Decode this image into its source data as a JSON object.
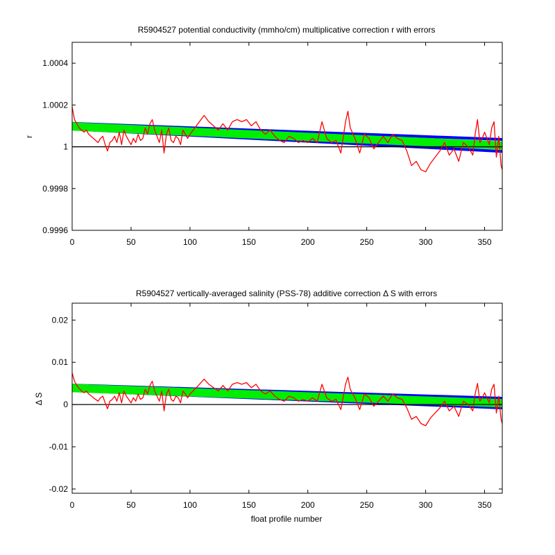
{
  "chart_data": [
    {
      "type": "line",
      "title": "R5904527 potential conductivity (mmho/cm) multiplicative correction r with errors",
      "xlabel": "",
      "ylabel": "r",
      "xlim": [
        0,
        365
      ],
      "ylim": [
        0.9996,
        1.0005
      ],
      "xticks": [
        0,
        50,
        100,
        150,
        200,
        250,
        300,
        350
      ],
      "xtick_labels": [
        "0",
        "50",
        "100",
        "150",
        "200",
        "250",
        "300",
        "350"
      ],
      "yticks": [
        0.9996,
        0.9998,
        1.0,
        1.0002,
        1.0004
      ],
      "ytick_labels": [
        "0.9996",
        "0.9998",
        "1",
        "1.0002",
        "1.0004"
      ],
      "reference_line": 1.0,
      "colors": {
        "raw": "#ff0000",
        "fit": "#00ee00",
        "error": "#0000ff",
        "reference": "#000000"
      },
      "series": [
        {
          "kind": "error_upper",
          "x": [
            0,
            365
          ],
          "y": [
            1.000112,
            1.000035
          ]
        },
        {
          "kind": "error_lower",
          "x": [
            0,
            365
          ],
          "y": [
            1.000085,
            0.999978
          ]
        },
        {
          "kind": "fit",
          "x": [
            0,
            365
          ],
          "y": [
            1.000097,
            1.000006
          ]
        },
        {
          "kind": "raw",
          "x": [
            0,
            2,
            4,
            6,
            8,
            10,
            12,
            14,
            16,
            18,
            20,
            22,
            24,
            26,
            28,
            30,
            32,
            34,
            36,
            38,
            40,
            42,
            44,
            46,
            48,
            50,
            52,
            54,
            56,
            58,
            60,
            62,
            64,
            66,
            68,
            70,
            72,
            74,
            76,
            78,
            80,
            82,
            84,
            86,
            88,
            90,
            92,
            94,
            96,
            98,
            100,
            104,
            108,
            112,
            116,
            120,
            124,
            128,
            132,
            136,
            140,
            144,
            148,
            152,
            156,
            160,
            164,
            168,
            172,
            176,
            180,
            184,
            188,
            192,
            196,
            200,
            204,
            208,
            212,
            216,
            220,
            224,
            228,
            232,
            234,
            236,
            240,
            244,
            248,
            252,
            256,
            260,
            264,
            268,
            272,
            276,
            280,
            284,
            288,
            292,
            296,
            300,
            304,
            308,
            312,
            316,
            320,
            324,
            328,
            332,
            336,
            340,
            342,
            344,
            346,
            348,
            350,
            352,
            354,
            356,
            358,
            360,
            362,
            364,
            365
          ],
          "y": [
            1.00019,
            1.00013,
            1.00011,
            1.00009,
            1.00008,
            1.00007,
            1.00008,
            1.00006,
            1.00005,
            1.00004,
            1.00003,
            1.00002,
            1.00004,
            1.00005,
            1.00001,
            0.99998,
            1.00002,
            1.00003,
            1.00005,
            1.00002,
            1.00007,
            1.00001,
            1.00008,
            1.00005,
            1.00003,
            1.00001,
            1.00004,
            1.00002,
            1.00006,
            1.00003,
            1.00004,
            1.00009,
            1.00006,
            1.00011,
            1.00013,
            1.00008,
            1.00005,
            1.00002,
            1.00008,
            0.99997,
            1.00006,
            1.00009,
            1.00003,
            1.00002,
            1.00005,
            1.00004,
            1.00001,
            1.00008,
            1.00006,
            1.00004,
            1.00006,
            1.00009,
            1.00012,
            1.00015,
            1.00012,
            1.0001,
            1.00008,
            1.00011,
            1.00008,
            1.00012,
            1.00013,
            1.00012,
            1.00013,
            1.0001,
            1.00012,
            1.00008,
            1.00006,
            1.00008,
            1.00005,
            1.00003,
            1.00002,
            1.00005,
            1.00004,
            1.00002,
            1.00003,
            1.00002,
            1.00004,
            1.00002,
            1.00012,
            1.00004,
            1.00002,
            1.00003,
            0.99997,
            1.00012,
            1.00017,
            1.00009,
            1.00004,
            0.99997,
            1.00006,
            1.00004,
            0.99999,
            1.00002,
            1.00005,
            1.00002,
            1.00006,
            1.00004,
            1.00003,
            0.99998,
            0.99991,
            0.99993,
            0.99989,
            0.99988,
            0.99992,
            0.99995,
            0.99998,
            1.00002,
            0.99996,
            0.99999,
            0.99993,
            1.00002,
            1.0,
            0.99996,
            1.00006,
            1.00013,
            1.00002,
            1.00004,
            1.00007,
            1.00004,
            1.00001,
            1.00009,
            1.00012,
            0.99995,
            1.00005,
            0.99991,
            0.99989
          ]
        }
      ]
    },
    {
      "type": "line",
      "title": "R5904527 vertically-averaged salinity (PSS-78) additive correction Δ S with errors",
      "xlabel": "float profile number",
      "ylabel": "Δ S",
      "xlim": [
        0,
        365
      ],
      "ylim": [
        -0.021,
        0.024
      ],
      "xticks": [
        0,
        50,
        100,
        150,
        200,
        250,
        300,
        350
      ],
      "xtick_labels": [
        "0",
        "50",
        "100",
        "150",
        "200",
        "250",
        "300",
        "350"
      ],
      "yticks": [
        -0.02,
        -0.01,
        0,
        0.01,
        0.02
      ],
      "ytick_labels": [
        "-0.02",
        "-0.01",
        "0",
        "0.01",
        "0.02"
      ],
      "reference_line": 0,
      "colors": {
        "raw": "#ff0000",
        "fit": "#00ee00",
        "error": "#0000ff",
        "reference": "#000000"
      },
      "series": [
        {
          "kind": "error_upper",
          "x": [
            0,
            365
          ],
          "y": [
            0.0046,
            0.0015
          ]
        },
        {
          "kind": "error_lower",
          "x": [
            0,
            365
          ],
          "y": [
            0.0033,
            -0.0008
          ]
        },
        {
          "kind": "fit",
          "x": [
            0,
            365
          ],
          "y": [
            0.0039,
            0.0003
          ]
        },
        {
          "kind": "raw",
          "x": [
            0,
            2,
            4,
            6,
            8,
            10,
            12,
            14,
            16,
            18,
            20,
            22,
            24,
            26,
            28,
            30,
            32,
            34,
            36,
            38,
            40,
            42,
            44,
            46,
            48,
            50,
            52,
            54,
            56,
            58,
            60,
            62,
            64,
            66,
            68,
            70,
            72,
            74,
            76,
            78,
            80,
            82,
            84,
            86,
            88,
            90,
            92,
            94,
            96,
            98,
            100,
            104,
            108,
            112,
            116,
            120,
            124,
            128,
            132,
            136,
            140,
            144,
            148,
            152,
            156,
            160,
            164,
            168,
            172,
            176,
            180,
            184,
            188,
            192,
            196,
            200,
            204,
            208,
            212,
            216,
            220,
            224,
            228,
            232,
            234,
            236,
            240,
            244,
            248,
            252,
            256,
            260,
            264,
            268,
            272,
            276,
            280,
            284,
            288,
            292,
            296,
            300,
            304,
            308,
            312,
            316,
            320,
            324,
            328,
            332,
            336,
            340,
            342,
            344,
            346,
            348,
            350,
            352,
            354,
            356,
            358,
            360,
            362,
            364,
            365
          ],
          "y": [
            0.0075,
            0.0055,
            0.0045,
            0.0038,
            0.0032,
            0.0028,
            0.0032,
            0.0025,
            0.0021,
            0.0016,
            0.0012,
            0.0008,
            0.0016,
            0.002,
            0.0004,
            -0.001,
            0.0008,
            0.0012,
            0.002,
            0.0008,
            0.0028,
            0.0004,
            0.0032,
            0.002,
            0.0012,
            0.0004,
            0.0016,
            0.0008,
            0.0025,
            0.0012,
            0.0016,
            0.0036,
            0.0025,
            0.0045,
            0.0055,
            0.0032,
            0.002,
            0.0008,
            0.0032,
            -0.0015,
            0.0025,
            0.0036,
            0.0012,
            0.0008,
            0.002,
            0.0016,
            0.0004,
            0.0032,
            0.0025,
            0.0016,
            0.0025,
            0.0036,
            0.0048,
            0.006,
            0.0048,
            0.004,
            0.0032,
            0.0045,
            0.0032,
            0.0048,
            0.0052,
            0.0048,
            0.0052,
            0.004,
            0.0048,
            0.0032,
            0.0025,
            0.0032,
            0.002,
            0.0012,
            0.0008,
            0.002,
            0.0016,
            0.0008,
            0.0012,
            0.0008,
            0.0016,
            0.0008,
            0.0048,
            0.0016,
            0.0008,
            0.0012,
            -0.0012,
            0.0048,
            0.0065,
            0.0036,
            0.0016,
            -0.0012,
            0.0025,
            0.0016,
            -0.0004,
            0.0008,
            0.002,
            0.0008,
            0.0025,
            0.0016,
            0.0012,
            -0.0008,
            -0.0035,
            -0.0028,
            -0.0045,
            -0.005,
            -0.0032,
            -0.002,
            -0.0008,
            0.0008,
            -0.0015,
            -0.0004,
            -0.0028,
            0.0008,
            0.0,
            -0.0015,
            0.0025,
            0.005,
            0.0008,
            0.0016,
            0.0028,
            0.0016,
            0.0004,
            0.0036,
            0.0048,
            -0.002,
            0.002,
            -0.0035,
            -0.0045
          ]
        }
      ]
    }
  ]
}
